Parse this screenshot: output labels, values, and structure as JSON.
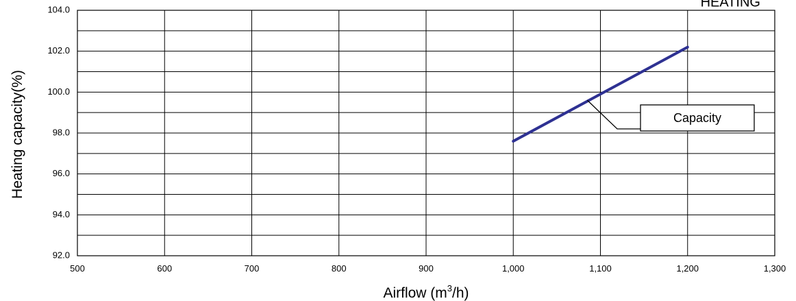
{
  "corner_label": "HEATING",
  "chart_data": {
    "type": "line",
    "title": "",
    "xlabel_main": "Airflow (m",
    "xlabel_sup": "3",
    "xlabel_tail": "/h)",
    "ylabel": "Heating capacity(%)",
    "xlim": [
      500,
      1300
    ],
    "ylim": [
      92.0,
      104.0
    ],
    "x_ticks": [
      500,
      600,
      700,
      800,
      900,
      1000,
      1100,
      1200,
      1300
    ],
    "x_tick_labels": [
      "500",
      "600",
      "700",
      "800",
      "900",
      "1,000",
      "1,100",
      "1,200",
      "1,300"
    ],
    "y_ticks": [
      92.0,
      94.0,
      96.0,
      98.0,
      100.0,
      102.0,
      104.0
    ],
    "y_tick_labels": [
      "92.0",
      "94.0",
      "96.0",
      "98.0",
      "100.0",
      "102.0",
      "104.0"
    ],
    "y_minor_gridlines": [
      93.0,
      95.0,
      97.0,
      99.0,
      101.0,
      103.0
    ],
    "grid": true,
    "series": [
      {
        "name": "Capacity",
        "color": "#2e3192",
        "x": [
          1000,
          1200
        ],
        "y": [
          97.6,
          102.2
        ]
      }
    ],
    "annotations": [
      {
        "text": "Capacity",
        "points_to_x": 1085,
        "points_to_y": 99.6
      }
    ]
  }
}
